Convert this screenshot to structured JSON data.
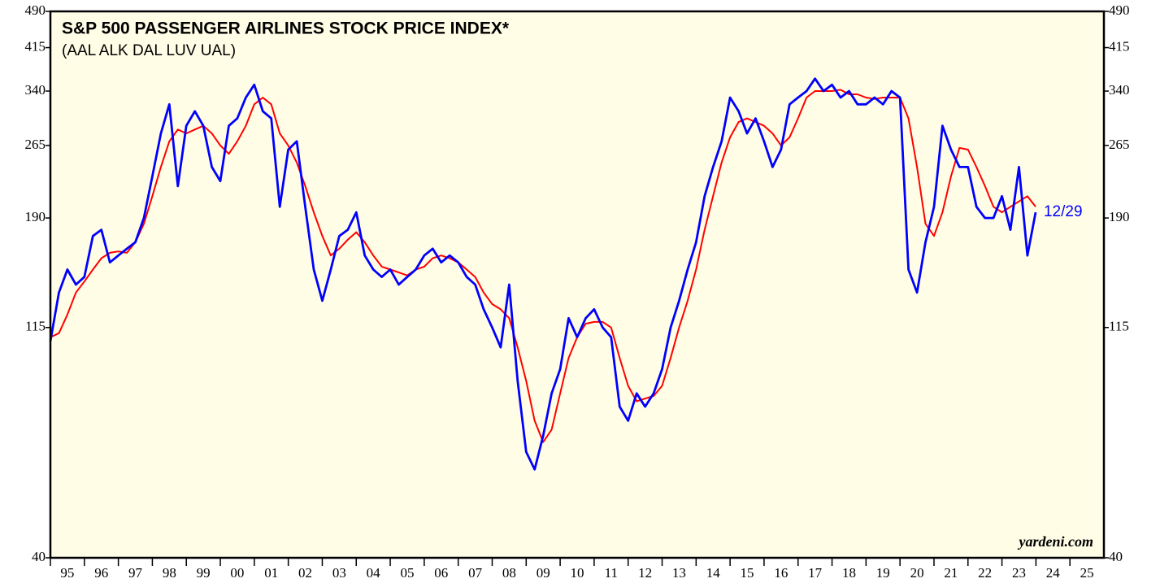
{
  "chart_data": {
    "type": "line",
    "title": "S&P 500 PASSENGER AIRLINES STOCK PRICE INDEX*",
    "subtitle": "(AAL ALK DAL LUV UAL)",
    "annotation": "12/29",
    "source": "yardeni.com",
    "log_scale": true,
    "x": [
      1995,
      1995.25,
      1995.5,
      1995.75,
      1996,
      1996.25,
      1996.5,
      1996.75,
      1997,
      1997.25,
      1997.5,
      1997.75,
      1998,
      1998.25,
      1998.5,
      1998.75,
      1999,
      1999.25,
      1999.5,
      1999.75,
      2000,
      2000.25,
      2000.5,
      2000.75,
      2001,
      2001.25,
      2001.5,
      2001.75,
      2002,
      2002.25,
      2002.5,
      2002.75,
      2003,
      2003.25,
      2003.5,
      2003.75,
      2004,
      2004.25,
      2004.5,
      2004.75,
      2005,
      2005.25,
      2005.5,
      2005.75,
      2006,
      2006.25,
      2006.5,
      2006.75,
      2007,
      2007.25,
      2007.5,
      2007.75,
      2008,
      2008.25,
      2008.5,
      2008.75,
      2009,
      2009.25,
      2009.5,
      2009.75,
      2010,
      2010.25,
      2010.5,
      2010.75,
      2011,
      2011.25,
      2011.5,
      2011.75,
      2012,
      2012.25,
      2012.5,
      2012.75,
      2013,
      2013.25,
      2013.5,
      2013.75,
      2014,
      2014.25,
      2014.5,
      2014.75,
      2015,
      2015.25,
      2015.5,
      2015.75,
      2016,
      2016.25,
      2016.5,
      2016.75,
      2017,
      2017.25,
      2017.5,
      2017.75,
      2018,
      2018.25,
      2018.5,
      2018.75,
      2019,
      2019.25,
      2019.5,
      2019.75,
      2020,
      2020.25,
      2020.5,
      2020.75,
      2021,
      2021.25,
      2021.5,
      2021.75,
      2022,
      2022.25,
      2022.5,
      2022.75,
      2023,
      2023.25,
      2023.5,
      2023.75,
      2023.99
    ],
    "series": [
      {
        "color": "#0000ff",
        "values": [
          108,
          135,
          150,
          140,
          145,
          175,
          180,
          155,
          160,
          165,
          170,
          190,
          230,
          280,
          320,
          220,
          290,
          310,
          290,
          240,
          225,
          290,
          300,
          330,
          350,
          310,
          300,
          200,
          260,
          270,
          200,
          150,
          130,
          150,
          175,
          180,
          195,
          160,
          150,
          145,
          150,
          140,
          145,
          150,
          160,
          165,
          155,
          160,
          155,
          145,
          140,
          125,
          115,
          105,
          140,
          90,
          65,
          60,
          70,
          85,
          95,
          120,
          110,
          120,
          125,
          115,
          110,
          80,
          75,
          85,
          80,
          85,
          95,
          115,
          130,
          150,
          170,
          210,
          240,
          270,
          330,
          310,
          280,
          300,
          270,
          240,
          260,
          320,
          330,
          340,
          360,
          340,
          350,
          330,
          340,
          320,
          320,
          330,
          320,
          340,
          330,
          150,
          135,
          170,
          200,
          290,
          260,
          240,
          240,
          200,
          190,
          190,
          210,
          180,
          240,
          160,
          195
        ]
      },
      {
        "color": "#ff0000",
        "values": [
          110,
          112,
          122,
          135,
          142,
          150,
          158,
          162,
          163,
          162,
          170,
          185,
          210,
          240,
          270,
          285,
          280,
          285,
          290,
          280,
          265,
          255,
          270,
          290,
          320,
          330,
          320,
          280,
          265,
          245,
          220,
          195,
          175,
          160,
          165,
          172,
          178,
          170,
          160,
          152,
          150,
          148,
          146,
          150,
          152,
          158,
          160,
          158,
          155,
          150,
          145,
          135,
          128,
          125,
          120,
          105,
          90,
          75,
          68,
          72,
          85,
          100,
          110,
          117,
          118,
          118,
          115,
          100,
          88,
          82,
          83,
          84,
          88,
          100,
          115,
          130,
          150,
          180,
          210,
          245,
          275,
          295,
          300,
          295,
          290,
          280,
          265,
          275,
          300,
          330,
          340,
          340,
          340,
          342,
          335,
          335,
          330,
          328,
          330,
          330,
          330,
          300,
          240,
          185,
          175,
          195,
          230,
          262,
          260,
          240,
          220,
          200,
          195,
          200,
          205,
          210,
          200
        ]
      }
    ],
    "xlim": [
      1995,
      2026
    ],
    "xticks": [
      {
        "value": 1995,
        "label": "95"
      },
      {
        "value": 1996,
        "label": "96"
      },
      {
        "value": 1997,
        "label": "97"
      },
      {
        "value": 1998,
        "label": "98"
      },
      {
        "value": 1999,
        "label": "99"
      },
      {
        "value": 2000,
        "label": "00"
      },
      {
        "value": 2001,
        "label": "01"
      },
      {
        "value": 2002,
        "label": "02"
      },
      {
        "value": 2003,
        "label": "03"
      },
      {
        "value": 2004,
        "label": "04"
      },
      {
        "value": 2005,
        "label": "05"
      },
      {
        "value": 2006,
        "label": "06"
      },
      {
        "value": 2007,
        "label": "07"
      },
      {
        "value": 2008,
        "label": "08"
      },
      {
        "value": 2009,
        "label": "09"
      },
      {
        "value": 2010,
        "label": "10"
      },
      {
        "value": 2011,
        "label": "11"
      },
      {
        "value": 2012,
        "label": "12"
      },
      {
        "value": 2013,
        "label": "13"
      },
      {
        "value": 2014,
        "label": "14"
      },
      {
        "value": 2015,
        "label": "15"
      },
      {
        "value": 2016,
        "label": "16"
      },
      {
        "value": 2017,
        "label": "17"
      },
      {
        "value": 2018,
        "label": "18"
      },
      {
        "value": 2019,
        "label": "19"
      },
      {
        "value": 2020,
        "label": "20"
      },
      {
        "value": 2021,
        "label": "21"
      },
      {
        "value": 2022,
        "label": "22"
      },
      {
        "value": 2023,
        "label": "23"
      },
      {
        "value": 2024,
        "label": "24"
      },
      {
        "value": 2025,
        "label": "25"
      }
    ],
    "ylim": [
      40,
      490
    ],
    "yticks": [
      40,
      115,
      190,
      265,
      340,
      415,
      490
    ]
  }
}
